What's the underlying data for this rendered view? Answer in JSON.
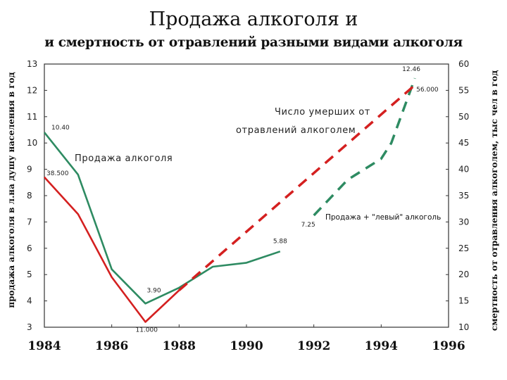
{
  "title_line1": "Продажа алкоголя и",
  "title_line2": "и смертность от отравлений разными видами алкоголя",
  "chart_data": {
    "type": "line",
    "x_ticks": [
      "1984",
      "1986",
      "1988",
      "1990",
      "1992",
      "1994",
      "1996"
    ],
    "xlim": [
      1984,
      1996
    ],
    "y_left": {
      "label": "продажа алкоголя в л.на душу населения в год",
      "ticks": [
        "3",
        "4",
        "5",
        "6",
        "7",
        "8",
        "9",
        "10",
        "11",
        "12",
        "13"
      ],
      "lim": [
        3,
        13
      ]
    },
    "y_right": {
      "label": "смертность от отравления алкоголем, тыс чел в год",
      "ticks": [
        "10",
        "15",
        "20",
        "25",
        "30",
        "35",
        "40",
        "45",
        "50",
        "55",
        "60"
      ],
      "lim": [
        10,
        60
      ]
    },
    "grid": false,
    "series": [
      {
        "name": "Продажа алкоголя",
        "axis": "left",
        "color": "#2e8b62",
        "style": "solid",
        "x": [
          1984,
          1985,
          1986,
          1987,
          1988,
          1989,
          1990,
          1991
        ],
        "y": [
          10.4,
          8.8,
          5.2,
          3.9,
          4.5,
          5.3,
          5.45,
          5.88
        ]
      },
      {
        "name": "Продажа + \"левый\" алкоголь",
        "axis": "left",
        "color": "#2e8b62",
        "style": "dashed",
        "x": [
          1992,
          1993,
          1994,
          1994.3,
          1995
        ],
        "y": [
          7.25,
          8.6,
          9.4,
          10.0,
          12.46
        ]
      },
      {
        "name": "Число умерших от отравлений алкоголем",
        "axis": "right",
        "color": "#d42020",
        "style": "solid",
        "x": [
          1984,
          1985,
          1986,
          1987,
          1988
        ],
        "y": [
          38.5,
          31.5,
          19.5,
          11.0,
          17.0
        ]
      },
      {
        "name": "Число умерших от отравлений алкоголем",
        "axis": "right",
        "color": "#d42020",
        "style": "dashed",
        "x": [
          1988,
          1995
        ],
        "y": [
          17.0,
          56.0
        ]
      }
    ],
    "annotations": [
      {
        "text": "10.40",
        "x": 1984,
        "y": 10.4,
        "axis": "left"
      },
      {
        "text": "38.500",
        "x": 1984,
        "y": 38.5,
        "axis": "right"
      },
      {
        "text": "3.90",
        "x": 1987,
        "y": 3.9,
        "axis": "left"
      },
      {
        "text": "11.000",
        "x": 1987,
        "y": 11.0,
        "axis": "right"
      },
      {
        "text": "5.88",
        "x": 1991,
        "y": 5.88,
        "axis": "left"
      },
      {
        "text": "7.25",
        "x": 1992,
        "y": 7.25,
        "axis": "left"
      },
      {
        "text": "12.46",
        "x": 1995,
        "y": 12.46,
        "axis": "left"
      },
      {
        "text": "56.000",
        "x": 1995,
        "y": 56.0,
        "axis": "right"
      }
    ],
    "labels": {
      "sales": "Продажа алкоголя",
      "deaths_line1": "Число умерших от",
      "deaths_line2": "отравлений алкоголем",
      "sales_plus": "Продажа + \"левый\" алкоголь"
    }
  }
}
